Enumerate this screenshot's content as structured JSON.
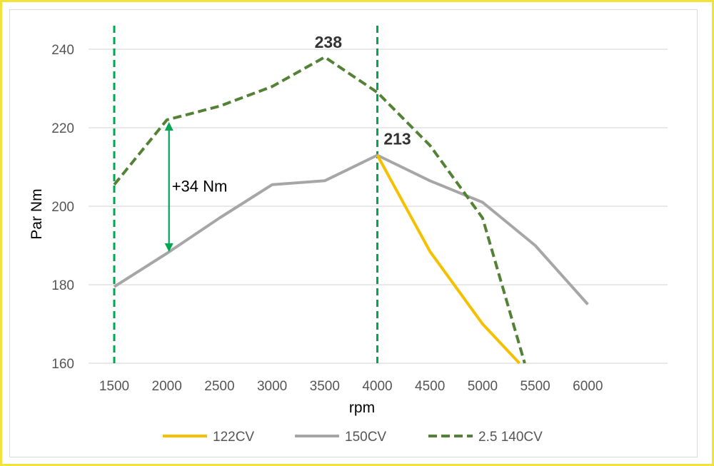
{
  "chart_data": {
    "type": "line",
    "x": [
      1500,
      2000,
      2500,
      3000,
      3500,
      4000,
      4500,
      5000,
      5500,
      6000
    ],
    "series": [
      {
        "name": "122CV",
        "color": "#f5c000",
        "style": "solid",
        "points": [
          [
            4000,
            213
          ],
          [
            4500,
            188.5
          ],
          [
            5000,
            170
          ],
          [
            5350,
            160
          ]
        ]
      },
      {
        "name": "150CV",
        "color": "#a6a6a6",
        "style": "solid",
        "points": [
          [
            1500,
            179.5
          ],
          [
            2000,
            188
          ],
          [
            2500,
            197
          ],
          [
            3000,
            205.5
          ],
          [
            3500,
            206.5
          ],
          [
            4000,
            213
          ],
          [
            4500,
            206.5
          ],
          [
            5000,
            201
          ],
          [
            5500,
            190
          ],
          [
            6000,
            175
          ]
        ]
      },
      {
        "name": "2.5 140CV",
        "color": "#538135",
        "style": "dashed",
        "points": [
          [
            1500,
            205.5
          ],
          [
            2000,
            222
          ],
          [
            2500,
            225.5
          ],
          [
            3000,
            230.5
          ],
          [
            3500,
            238
          ],
          [
            4000,
            229
          ],
          [
            4500,
            215.5
          ],
          [
            5000,
            197
          ],
          [
            5400,
            160
          ]
        ]
      }
    ],
    "xlabel": "rpm",
    "ylabel": "Par Nm",
    "yticks": [
      160,
      180,
      200,
      220,
      240
    ],
    "ylim": [
      160,
      247
    ],
    "grid": "horizontal",
    "legend_position": "bottom",
    "vertical_markers": [
      1500,
      4000
    ],
    "marker_color": "#00a651",
    "arrow": {
      "x": 2000,
      "y_from": 222,
      "y_to": 188,
      "color": "#00a651"
    },
    "labels": {
      "peak_140": {
        "text": "238",
        "x": 3500,
        "y": 238
      },
      "peak_150": {
        "text": "213",
        "x": 4000,
        "y": 213
      },
      "delta": {
        "text": "+34 Nm",
        "x": 2000,
        "y": 205
      }
    }
  }
}
